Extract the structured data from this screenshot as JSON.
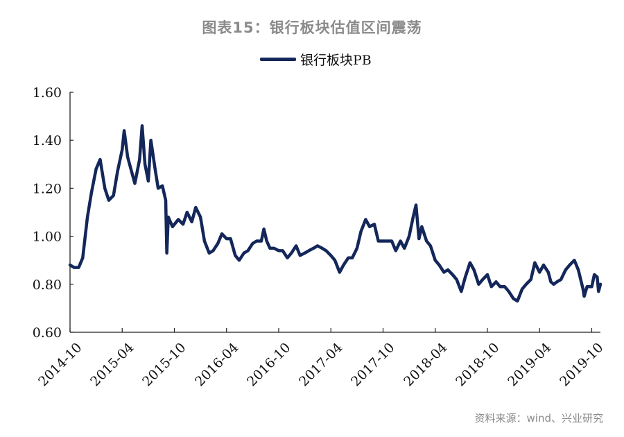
{
  "chart_data": {
    "type": "line",
    "title": "图表15：银行板块估值区间震荡",
    "legend": {
      "position": "top-center",
      "entries": [
        "银行板块PB"
      ]
    },
    "xlabel": "",
    "ylabel": "",
    "ylim": [
      0.6,
      1.6
    ],
    "yticks": [
      "0.60",
      "0.80",
      "1.00",
      "1.20",
      "1.40",
      "1.60"
    ],
    "ytick_values": [
      0.6,
      0.8,
      1.0,
      1.2,
      1.4,
      1.6
    ],
    "xticks": [
      "2014-10",
      "2015-04",
      "2015-10",
      "2016-04",
      "2016-10",
      "2017-04",
      "2017-10",
      "2018-04",
      "2018-10",
      "2019-04",
      "2019-10"
    ],
    "xrange": [
      "2014-10-01",
      "2019-11-01"
    ],
    "grid": false,
    "series": [
      {
        "name": "银行板块PB",
        "color": "#14275a",
        "points": [
          [
            "2014-10-01",
            0.88
          ],
          [
            "2014-10-15",
            0.87
          ],
          [
            "2014-11-01",
            0.87
          ],
          [
            "2014-11-15",
            0.91
          ],
          [
            "2014-12-01",
            1.08
          ],
          [
            "2014-12-15",
            1.18
          ],
          [
            "2015-01-01",
            1.28
          ],
          [
            "2015-01-15",
            1.32
          ],
          [
            "2015-02-01",
            1.2
          ],
          [
            "2015-02-15",
            1.15
          ],
          [
            "2015-03-01",
            1.17
          ],
          [
            "2015-03-15",
            1.27
          ],
          [
            "2015-04-01",
            1.36
          ],
          [
            "2015-04-08",
            1.44
          ],
          [
            "2015-04-20",
            1.33
          ],
          [
            "2015-05-01",
            1.28
          ],
          [
            "2015-05-15",
            1.22
          ],
          [
            "2015-06-01",
            1.32
          ],
          [
            "2015-06-10",
            1.46
          ],
          [
            "2015-06-20",
            1.3
          ],
          [
            "2015-07-01",
            1.23
          ],
          [
            "2015-07-10",
            1.4
          ],
          [
            "2015-07-25",
            1.28
          ],
          [
            "2015-08-05",
            1.2
          ],
          [
            "2015-08-20",
            1.21
          ],
          [
            "2015-09-01",
            1.15
          ],
          [
            "2015-09-05",
            0.93
          ],
          [
            "2015-09-10",
            1.08
          ],
          [
            "2015-09-25",
            1.04
          ],
          [
            "2015-10-15",
            1.07
          ],
          [
            "2015-11-01",
            1.05
          ],
          [
            "2015-11-15",
            1.1
          ],
          [
            "2015-12-01",
            1.06
          ],
          [
            "2015-12-15",
            1.12
          ],
          [
            "2016-01-01",
            1.08
          ],
          [
            "2016-01-15",
            0.98
          ],
          [
            "2016-02-01",
            0.93
          ],
          [
            "2016-02-15",
            0.94
          ],
          [
            "2016-03-01",
            0.97
          ],
          [
            "2016-03-15",
            1.01
          ],
          [
            "2016-04-01",
            0.99
          ],
          [
            "2016-04-15",
            0.99
          ],
          [
            "2016-05-01",
            0.92
          ],
          [
            "2016-05-15",
            0.9
          ],
          [
            "2016-06-01",
            0.93
          ],
          [
            "2016-06-15",
            0.94
          ],
          [
            "2016-07-01",
            0.97
          ],
          [
            "2016-07-15",
            0.98
          ],
          [
            "2016-08-01",
            0.98
          ],
          [
            "2016-08-10",
            1.03
          ],
          [
            "2016-08-20",
            0.98
          ],
          [
            "2016-09-01",
            0.95
          ],
          [
            "2016-09-15",
            0.95
          ],
          [
            "2016-10-01",
            0.94
          ],
          [
            "2016-10-15",
            0.94
          ],
          [
            "2016-11-01",
            0.91
          ],
          [
            "2016-11-15",
            0.93
          ],
          [
            "2016-12-01",
            0.96
          ],
          [
            "2016-12-15",
            0.92
          ],
          [
            "2017-01-01",
            0.93
          ],
          [
            "2017-01-15",
            0.94
          ],
          [
            "2017-02-01",
            0.95
          ],
          [
            "2017-02-15",
            0.96
          ],
          [
            "2017-03-01",
            0.95
          ],
          [
            "2017-03-15",
            0.94
          ],
          [
            "2017-04-01",
            0.92
          ],
          [
            "2017-04-15",
            0.9
          ],
          [
            "2017-05-01",
            0.85
          ],
          [
            "2017-05-15",
            0.88
          ],
          [
            "2017-06-01",
            0.91
          ],
          [
            "2017-06-15",
            0.91
          ],
          [
            "2017-07-01",
            0.95
          ],
          [
            "2017-07-15",
            1.02
          ],
          [
            "2017-08-01",
            1.07
          ],
          [
            "2017-08-15",
            1.04
          ],
          [
            "2017-09-01",
            1.05
          ],
          [
            "2017-09-15",
            0.98
          ],
          [
            "2017-10-01",
            0.98
          ],
          [
            "2017-10-15",
            0.98
          ],
          [
            "2017-11-01",
            0.98
          ],
          [
            "2017-11-15",
            0.94
          ],
          [
            "2017-12-01",
            0.98
          ],
          [
            "2017-12-15",
            0.95
          ],
          [
            "2018-01-01",
            1.0
          ],
          [
            "2018-01-15",
            1.08
          ],
          [
            "2018-01-25",
            1.13
          ],
          [
            "2018-02-05",
            0.99
          ],
          [
            "2018-02-15",
            1.04
          ],
          [
            "2018-03-01",
            0.98
          ],
          [
            "2018-03-15",
            0.96
          ],
          [
            "2018-04-01",
            0.9
          ],
          [
            "2018-04-15",
            0.88
          ],
          [
            "2018-05-01",
            0.85
          ],
          [
            "2018-05-15",
            0.86
          ],
          [
            "2018-06-01",
            0.84
          ],
          [
            "2018-06-15",
            0.82
          ],
          [
            "2018-07-01",
            0.77
          ],
          [
            "2018-07-15",
            0.83
          ],
          [
            "2018-08-01",
            0.89
          ],
          [
            "2018-08-15",
            0.86
          ],
          [
            "2018-09-01",
            0.8
          ],
          [
            "2018-09-15",
            0.82
          ],
          [
            "2018-10-01",
            0.84
          ],
          [
            "2018-10-15",
            0.79
          ],
          [
            "2018-11-01",
            0.81
          ],
          [
            "2018-11-15",
            0.79
          ],
          [
            "2018-12-01",
            0.79
          ],
          [
            "2018-12-15",
            0.77
          ],
          [
            "2019-01-01",
            0.74
          ],
          [
            "2019-01-15",
            0.73
          ],
          [
            "2019-02-01",
            0.78
          ],
          [
            "2019-02-15",
            0.8
          ],
          [
            "2019-03-01",
            0.82
          ],
          [
            "2019-03-15",
            0.89
          ],
          [
            "2019-04-01",
            0.85
          ],
          [
            "2019-04-15",
            0.88
          ],
          [
            "2019-05-01",
            0.85
          ],
          [
            "2019-05-10",
            0.81
          ],
          [
            "2019-05-20",
            0.8
          ],
          [
            "2019-06-01",
            0.81
          ],
          [
            "2019-06-15",
            0.82
          ],
          [
            "2019-07-01",
            0.86
          ],
          [
            "2019-07-15",
            0.88
          ],
          [
            "2019-08-01",
            0.9
          ],
          [
            "2019-08-15",
            0.86
          ],
          [
            "2019-09-01",
            0.78
          ],
          [
            "2019-09-05",
            0.75
          ],
          [
            "2019-09-15",
            0.79
          ],
          [
            "2019-10-01",
            0.79
          ],
          [
            "2019-10-10",
            0.84
          ],
          [
            "2019-10-20",
            0.83
          ],
          [
            "2019-10-25",
            0.77
          ],
          [
            "2019-11-01",
            0.8
          ]
        ]
      }
    ],
    "source": "资料来源：wind、兴业研究"
  }
}
